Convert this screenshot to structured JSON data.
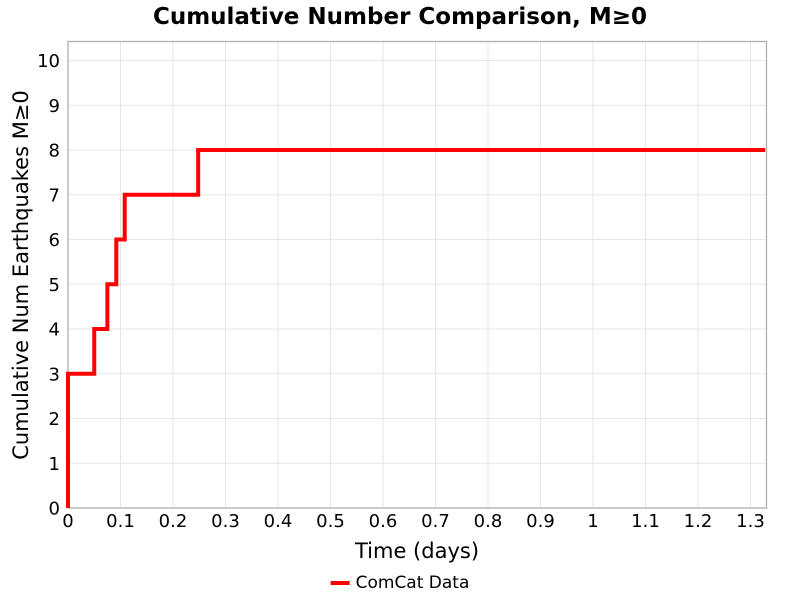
{
  "chart_data": {
    "type": "line",
    "subtype": "step-post",
    "title": "Cumulative Number Comparison, M≥0",
    "xlabel": "Time (days)",
    "ylabel": "Cumulative Num Earthquakes M≥0",
    "xlim": [
      0,
      1.3305
    ],
    "ylim": [
      0,
      10.425
    ],
    "grid": true,
    "x_ticks": {
      "values": [
        0,
        0.1,
        0.2,
        0.3,
        0.4,
        0.5,
        0.6,
        0.7,
        0.8,
        0.9,
        1,
        1.1,
        1.2,
        1.3
      ],
      "labels": [
        "0",
        "0.1",
        "0.2",
        "0.3",
        "0.4",
        "0.5",
        "0.6",
        "0.7",
        "0.8",
        "0.9",
        "1",
        "1.1",
        "1.2",
        "1.3"
      ]
    },
    "y_ticks": {
      "values": [
        0,
        1,
        2,
        3,
        4,
        5,
        6,
        7,
        8,
        9,
        10
      ],
      "labels": [
        "0",
        "1",
        "2",
        "3",
        "4",
        "5",
        "6",
        "7",
        "8",
        "9",
        "10"
      ]
    },
    "series": [
      {
        "name": "ComCat Data",
        "color": "#ff0000",
        "line_width": 4,
        "points": [
          [
            0,
            0
          ],
          [
            0,
            3
          ],
          [
            0.05,
            4
          ],
          [
            0.075,
            5
          ],
          [
            0.092,
            6
          ],
          [
            0.108,
            7
          ],
          [
            0.248,
            8
          ],
          [
            1.328,
            8
          ]
        ]
      }
    ],
    "legend": {
      "position": "bottom-center",
      "items": [
        {
          "label": "ComCat Data",
          "color": "#ff0000"
        }
      ]
    }
  }
}
